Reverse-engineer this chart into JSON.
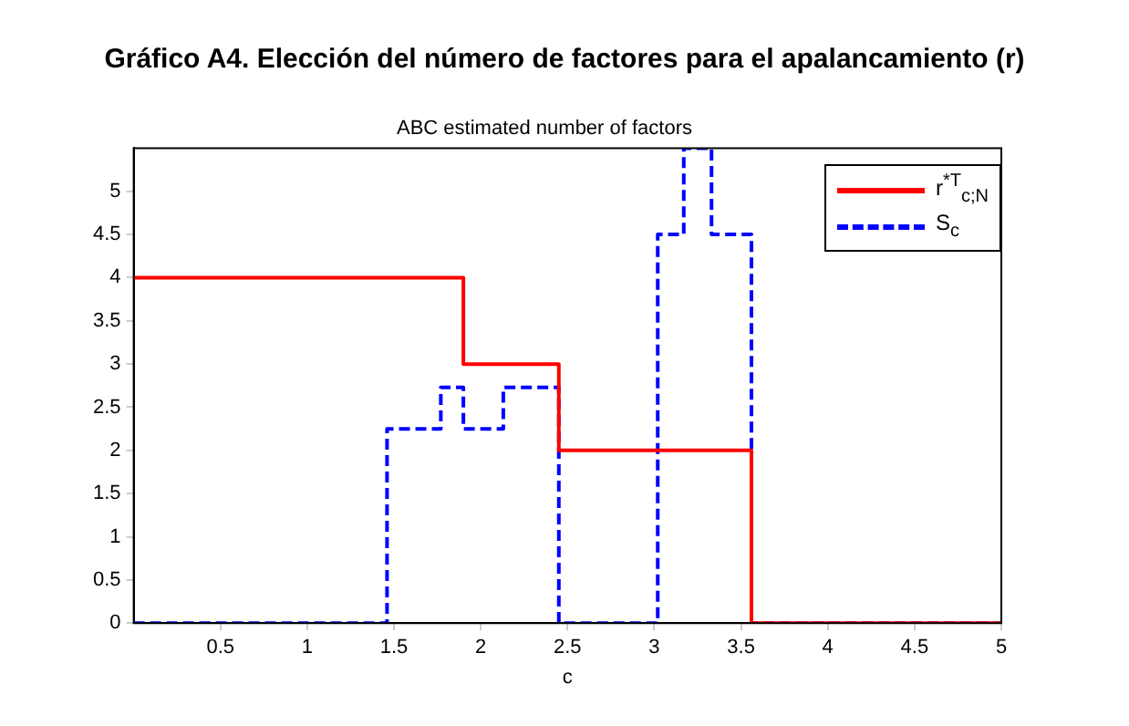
{
  "chart_data": {
    "type": "step",
    "title": "Gráfico A4. Elección del número de factores para el apalancamiento (r)",
    "subtitle": "ABC estimated number of factors",
    "xlabel": "c",
    "series": [
      {
        "name": "r$^{*T}$$_{c;N}$",
        "color": "#ff0000",
        "line_style": "solid",
        "x": [
          0,
          1.9,
          2.45,
          3.56,
          5
        ],
        "values": [
          4,
          3,
          2,
          0,
          0
        ]
      },
      {
        "name": "S$_{c}$",
        "color": "#0000ff",
        "line_style": "dashed",
        "x": [
          0,
          1.46,
          1.77,
          1.9,
          2.13,
          2.45,
          3.02,
          3.17,
          3.33,
          3.56,
          5
        ],
        "values": [
          0,
          2.25,
          2.73,
          2.25,
          2.73,
          0,
          4.5,
          5.5,
          4.5,
          0,
          0
        ]
      }
    ],
    "xlim": [
      0,
      5
    ],
    "xticks": [
      0.5,
      1,
      1.5,
      2,
      2.5,
      3,
      3.5,
      4,
      4.5,
      5
    ],
    "ylim": [
      0,
      5.5
    ],
    "yticks": [
      0,
      0.5,
      1,
      1.5,
      2,
      2.5,
      3,
      3.5,
      4,
      4.5,
      5
    ],
    "grid": false,
    "legend": "top right"
  }
}
